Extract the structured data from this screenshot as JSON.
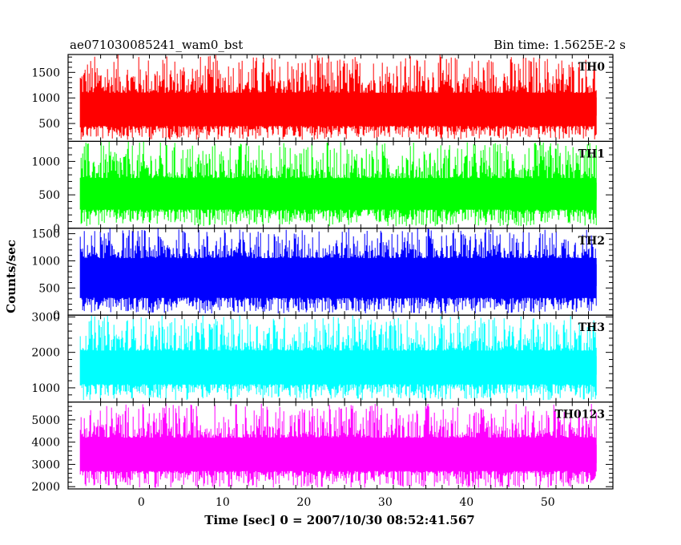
{
  "header": {
    "title": "ae071030085241_wam0_bst",
    "bin_time": "Bin time: 1.5625E-2 s"
  },
  "chart_data": {
    "type": "line",
    "xlabel": "Time [sec] 0 = 2007/10/30 08:52:41.567",
    "ylabel": "Counts/sec",
    "xlim": [
      -9,
      58
    ],
    "x_ticks": [
      0,
      10,
      20,
      30,
      40,
      50
    ],
    "x_tick_labels": [
      "0",
      "10",
      "20",
      "30",
      "40",
      "50"
    ],
    "data_x_range": [
      -7.5,
      56
    ],
    "panels": [
      {
        "name": "TH0",
        "color": "#ff0000",
        "ylim": [
          150,
          1850
        ],
        "yticks": [
          500,
          1000,
          1500
        ],
        "ytick_labels": [
          "500",
          "1000",
          "1500"
        ],
        "baseline": 900,
        "floor_min": 180,
        "floor_max": 450,
        "top_min": 1100,
        "top_max": 1850
      },
      {
        "name": "TH1",
        "color": "#00ff00",
        "ylim": [
          0,
          1300
        ],
        "yticks": [
          0,
          500,
          1000
        ],
        "ytick_labels": [
          "0",
          "500",
          "1000"
        ],
        "baseline": 600,
        "floor_min": 30,
        "floor_max": 280,
        "top_min": 750,
        "top_max": 1300
      },
      {
        "name": "TH2",
        "color": "#0000ff",
        "ylim": [
          0,
          1600
        ],
        "yticks": [
          0,
          500,
          1000,
          1500
        ],
        "ytick_labels": [
          "0",
          "500",
          "1000",
          "1500"
        ],
        "baseline": 800,
        "floor_min": 30,
        "floor_max": 320,
        "top_min": 1050,
        "top_max": 1600
      },
      {
        "name": "TH3",
        "color": "#00ffff",
        "ylim": [
          600,
          3050
        ],
        "yticks": [
          1000,
          2000,
          3000
        ],
        "ytick_labels": [
          "1000",
          "2000",
          "3000"
        ],
        "baseline": 1700,
        "floor_min": 650,
        "floor_max": 1100,
        "top_min": 2050,
        "top_max": 3050
      },
      {
        "name": "TH0123",
        "color": "#ff00ff",
        "ylim": [
          1900,
          5800
        ],
        "yticks": [
          2000,
          3000,
          4000,
          5000
        ],
        "ytick_labels": [
          "2000",
          "3000",
          "4000",
          "5000"
        ],
        "baseline": 3500,
        "floor_min": 1950,
        "floor_max": 2700,
        "top_min": 4200,
        "top_max": 5750
      }
    ]
  }
}
